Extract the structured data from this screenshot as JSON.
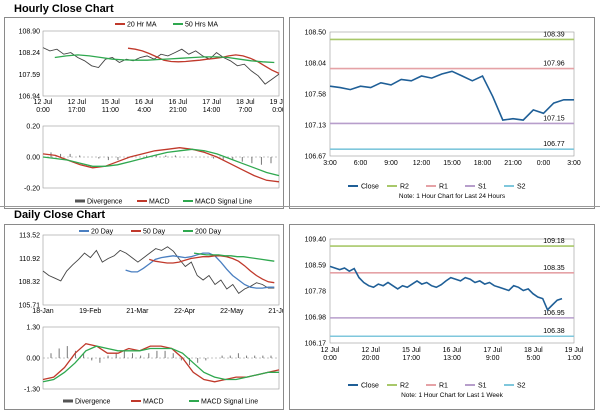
{
  "titles": {
    "hourly": "Hourly Close Chart",
    "daily": "Daily Close Chart"
  },
  "colors": {
    "close": "#1f5f97",
    "r2": "#a8c86a",
    "r1": "#e5a2a6",
    "s1": "#b79ecb",
    "s2": "#7fc7dc",
    "ma20": "#c0392b",
    "ma50": "#2fa84f",
    "day20": "#4a7fc1",
    "price": "#444444"
  },
  "chart_data": [
    {
      "id": "hourly-price",
      "type": "line",
      "title": "Hourly Close Chart",
      "legend": [
        "20 Hr MA",
        "50 Hrs MA"
      ],
      "yticks": [
        "108.90",
        "108.24",
        "107.59",
        "106.94"
      ],
      "ylim": [
        106.94,
        108.9
      ],
      "xticks": [
        "12 Jul\n0:00",
        "12 Jul\n17:00",
        "15 Jul\n11:00",
        "16 Jul\n4:00",
        "16 Jul\n21:00",
        "17 Jul\n14:00",
        "18 Jul\n7:00",
        "19 Jul\n0:00"
      ],
      "series": [
        {
          "name": "Price",
          "values": [
            108.4,
            108.3,
            108.35,
            108.2,
            108.25,
            108.1,
            108.0,
            107.85,
            107.8,
            108.05,
            108.1,
            107.95,
            108.05,
            108.0,
            108.1,
            108.15,
            108.05,
            108.2,
            108.15,
            108.25,
            108.35,
            108.2,
            108.3,
            108.15,
            108.05,
            108.25,
            108.1,
            108.0,
            107.85,
            107.9,
            107.7,
            107.55,
            107.3,
            107.45,
            107.6
          ]
        },
        {
          "name": "20 Hr MA",
          "values": [
            108.38,
            108.35,
            108.3,
            108.22,
            108.12,
            108.02,
            107.98,
            107.97,
            107.98,
            108.0,
            108.02,
            108.05,
            108.07,
            108.1,
            108.15,
            108.18,
            108.15,
            108.08,
            107.98,
            107.85,
            107.72,
            107.62
          ]
        },
        {
          "name": "50 Hrs MA",
          "values": [
            108.1,
            108.15,
            108.18,
            108.15,
            108.1,
            108.05,
            108.03,
            108.02,
            108.02,
            108.04,
            108.06,
            108.08,
            108.1,
            108.12,
            108.12,
            108.1,
            108.05,
            108.0,
            107.97,
            107.95
          ]
        }
      ]
    },
    {
      "id": "hourly-macd",
      "type": "line",
      "legend": [
        "Divergence",
        "MACD",
        "MACD Signal Line"
      ],
      "yticks": [
        "0.20",
        "0.00",
        "-0.20"
      ],
      "ylim": [
        -0.2,
        0.2
      ],
      "series": [
        {
          "name": "Divergence",
          "values": [
            0.03,
            0.02,
            0.02,
            0.01,
            0.0,
            -0.01,
            -0.02,
            -0.02,
            -0.01,
            0.0,
            0.01,
            0.01,
            0.01,
            0.01,
            0.0,
            0.0,
            0.0,
            -0.01,
            -0.02,
            -0.02,
            -0.03,
            -0.04,
            -0.05,
            -0.04
          ]
        },
        {
          "name": "MACD",
          "values": [
            0.02,
            0.01,
            -0.02,
            -0.05,
            -0.07,
            -0.06,
            -0.03,
            0.0,
            0.02,
            0.04,
            0.05,
            0.06,
            0.05,
            0.03,
            0.0,
            -0.04,
            -0.08,
            -0.12,
            -0.15,
            -0.16
          ]
        },
        {
          "name": "MACD Signal Line",
          "values": [
            0.0,
            -0.01,
            -0.02,
            -0.04,
            -0.06,
            -0.06,
            -0.05,
            -0.03,
            -0.01,
            0.01,
            0.03,
            0.04,
            0.05,
            0.04,
            0.02,
            -0.01,
            -0.04,
            -0.07,
            -0.1,
            -0.12
          ]
        }
      ]
    },
    {
      "id": "hourly-levels",
      "type": "line",
      "caption": "Note: 1 Hour Chart for Last 24 Hours",
      "legend": [
        "Close",
        "R2",
        "R1",
        "S1",
        "S2"
      ],
      "yticks": [
        "108.50",
        "108.04",
        "107.58",
        "107.13",
        "106.67"
      ],
      "ylim": [
        106.67,
        108.5
      ],
      "xticks": [
        "3:00",
        "6:00",
        "9:00",
        "12:00",
        "15:00",
        "18:00",
        "21:00",
        "0:00",
        "3:00"
      ],
      "levels": {
        "R2": 108.39,
        "R1": 107.96,
        "S1": 107.15,
        "S2": 106.77
      },
      "level_labels": [
        "108.39",
        "107.96",
        "107.15",
        "106.77"
      ],
      "x": [
        0,
        1,
        2,
        3,
        4,
        5,
        6,
        7,
        8,
        9,
        10,
        11,
        12,
        13,
        14,
        15,
        16,
        17,
        18,
        19,
        20,
        21,
        22,
        23,
        24
      ],
      "values": [
        107.7,
        107.68,
        107.65,
        107.7,
        107.68,
        107.75,
        107.72,
        107.8,
        107.78,
        107.85,
        107.82,
        107.88,
        107.92,
        107.85,
        107.78,
        107.85,
        107.55,
        107.2,
        107.22,
        107.2,
        107.35,
        107.3,
        107.45,
        107.5,
        107.5
      ]
    },
    {
      "id": "daily-price",
      "type": "line",
      "title": "Daily Close Chart",
      "legend": [
        "20 Day",
        "50 Day",
        "200 Day"
      ],
      "yticks": [
        "113.52",
        "110.92",
        "108.32",
        "105.71"
      ],
      "ylim": [
        105.71,
        113.52
      ],
      "xticks": [
        "18-Jan",
        "19-Feb",
        "21-Mar",
        "22-Apr",
        "22-May",
        "21-Jun"
      ],
      "series": [
        {
          "name": "Price",
          "values": [
            109.5,
            109.0,
            108.7,
            108.4,
            109.5,
            110.2,
            110.8,
            111.5,
            111.0,
            111.8,
            110.5,
            110.9,
            111.2,
            111.8,
            111.5,
            111.0,
            110.5,
            111.0,
            111.5,
            112.0,
            111.8,
            112.2,
            111.7,
            110.8,
            110.0,
            110.5,
            109.0,
            108.5,
            109.0,
            108.0,
            108.5,
            107.5,
            108.0,
            107.0,
            107.5,
            107.8,
            108.2,
            108.0,
            107.6,
            107.6
          ]
        },
        {
          "name": "20 Day",
          "values": [
            109.6,
            109.4,
            109.4,
            109.8,
            110.3,
            110.8,
            111.0,
            111.1,
            111.2,
            111.1,
            111.0,
            111.1,
            111.3,
            111.5,
            111.5,
            111.2,
            110.5,
            109.7,
            109.0,
            108.5,
            108.0,
            107.7,
            107.6,
            107.6,
            107.7,
            107.7
          ]
        },
        {
          "name": "50 Day",
          "values": [
            110.8,
            110.6,
            110.5,
            110.4,
            110.4,
            110.5,
            110.7,
            110.9,
            111.0,
            111.1,
            111.1,
            111.2,
            111.2,
            111.1,
            110.9,
            110.6,
            110.1,
            109.5,
            109.0,
            108.6,
            108.3,
            108.2
          ]
        },
        {
          "name": "200 Day",
          "values": [
            111.5,
            111.4,
            111.3,
            111.3,
            111.3,
            111.2,
            111.2,
            111.1,
            111.1,
            111.0,
            110.9,
            110.8,
            110.7,
            110.6
          ]
        }
      ]
    },
    {
      "id": "daily-macd",
      "type": "line",
      "legend": [
        "Divergence",
        "MACD",
        "MACD Signal Line"
      ],
      "yticks": [
        "1.30",
        "0.00",
        "-1.30"
      ],
      "ylim": [
        -1.3,
        1.3
      ],
      "series": [
        {
          "name": "Divergence",
          "values": [
            0.2,
            0.4,
            0.5,
            0.3,
            0.2,
            -0.1,
            -0.2,
            0.1,
            0.2,
            0.3,
            0.2,
            0.1,
            0.2,
            0.3,
            0.3,
            0.2,
            -0.1,
            -0.3,
            -0.2,
            -0.1,
            0.0,
            0.1,
            0.1,
            0.2,
            0.1,
            0.1,
            0.1,
            0.1
          ]
        },
        {
          "name": "MACD",
          "values": [
            -0.9,
            -0.8,
            -0.4,
            0.2,
            0.6,
            0.5,
            0.2,
            0.2,
            0.4,
            0.3,
            0.5,
            0.5,
            0.4,
            0.0,
            -0.6,
            -0.9,
            -1.0,
            -0.9,
            -0.8,
            -0.8,
            -0.7,
            -0.6,
            -0.5
          ]
        },
        {
          "name": "MACD Signal Line",
          "values": [
            -1.0,
            -0.9,
            -0.6,
            -0.2,
            0.3,
            0.5,
            0.4,
            0.3,
            0.3,
            0.3,
            0.4,
            0.4,
            0.4,
            0.2,
            -0.2,
            -0.6,
            -0.8,
            -0.9,
            -0.9,
            -0.8,
            -0.7,
            -0.6,
            -0.6
          ]
        }
      ]
    },
    {
      "id": "daily-levels",
      "type": "line",
      "caption": "Note: 1 Hour Chart for Last 1 Week",
      "legend": [
        "Close",
        "R2",
        "R1",
        "S1",
        "S2"
      ],
      "yticks": [
        "109.40",
        "108.59",
        "107.78",
        "106.98",
        "106.17"
      ],
      "ylim": [
        106.17,
        109.4
      ],
      "xticks": [
        "12 Jul\n0:00",
        "12 Jul\n20:00",
        "15 Jul\n17:00",
        "16 Jul\n13:00",
        "17 Jul\n9:00",
        "18 Jul\n5:00",
        "19 Jul\n1:00"
      ],
      "levels": {
        "R2": 109.18,
        "R1": 108.35,
        "S1": 106.95,
        "S2": 106.38
      },
      "level_labels": [
        "109.18",
        "108.35",
        "106.95",
        "106.38"
      ],
      "values": [
        108.55,
        108.5,
        108.45,
        108.5,
        108.4,
        108.48,
        108.2,
        108.05,
        107.95,
        107.9,
        108.0,
        107.95,
        108.05,
        107.95,
        107.85,
        107.95,
        107.9,
        108.0,
        108.1,
        108.0,
        108.05,
        107.95,
        107.9,
        107.98,
        108.1,
        108.2,
        108.15,
        108.1,
        108.2,
        108.15,
        108.05,
        108.1,
        108.0,
        108.05,
        107.95,
        107.9,
        107.85,
        107.8,
        107.95,
        107.9,
        107.8,
        107.85,
        107.7,
        107.6,
        107.55,
        107.2,
        107.35,
        107.5,
        107.55
      ]
    }
  ]
}
